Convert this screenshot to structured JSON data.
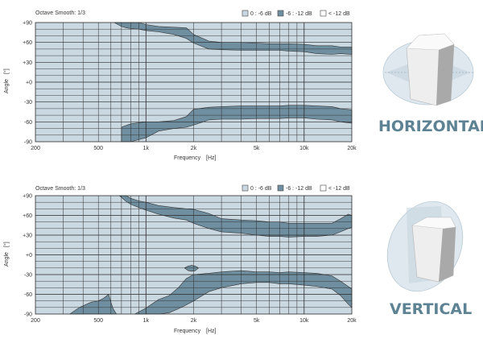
{
  "colors": {
    "light": "#cad8e2",
    "dark": "#6f8fa0",
    "white": "#ffffff",
    "grid": "#2b2b2b",
    "brand": "#5d8293"
  },
  "labels": {
    "horizontal": "HORIZONTAL",
    "vertical": "VERTICAL"
  },
  "chart_data": [
    {
      "type": "area",
      "id": "horizontal",
      "smoothing_label": "Octave Smooth: 1/3",
      "legend": [
        "0 : -6 dB",
        "-6 : -12 dB",
        "< -12 dB"
      ],
      "legend_placement": "top-right",
      "xlabel": "Frequency",
      "xunit": "[Hz]",
      "ylabel": "Angle",
      "yunit": "[°]",
      "xscale": "log",
      "xlim": [
        200,
        20000
      ],
      "ylim": [
        -90,
        90
      ],
      "xticks": [
        {
          "value": 200,
          "label": "200"
        },
        {
          "value": 500,
          "label": "500"
        },
        {
          "value": 1000,
          "label": "1k"
        },
        {
          "value": 2000,
          "label": "2k"
        },
        {
          "value": 5000,
          "label": "5k"
        },
        {
          "value": 10000,
          "label": "10k"
        },
        {
          "value": 20000,
          "label": "20k"
        }
      ],
      "yticks": [
        {
          "value": 90,
          "label": "+90"
        },
        {
          "value": 60,
          "label": "+60"
        },
        {
          "value": 30,
          "label": "+30"
        },
        {
          "value": 0,
          "label": "+0"
        },
        {
          "value": -30,
          "label": "-30"
        },
        {
          "value": -60,
          "label": "-60"
        },
        {
          "value": -90,
          "label": "-90"
        }
      ],
      "grid": true,
      "bands": [
        {
          "name": "-6 : -12 dB upper",
          "x": [
            630,
            700,
            750,
            800,
            900,
            1000,
            1200,
            1500,
            1800,
            2000,
            2500,
            3000,
            4000,
            5000,
            6000,
            7000,
            8000,
            10000,
            12000,
            15000,
            17000,
            20000
          ],
          "top": [
            90,
            90,
            90,
            90,
            90,
            87,
            84,
            83,
            82,
            72,
            62,
            60,
            60,
            59,
            58,
            58,
            58,
            57,
            55,
            55,
            53,
            53
          ],
          "bottom": [
            90,
            84,
            82,
            81,
            80,
            78,
            76,
            72,
            66,
            59,
            50,
            49,
            48,
            48,
            48,
            48,
            47,
            46,
            43,
            42,
            43,
            42
          ]
        },
        {
          "name": "-6 : -12 dB lower",
          "x": [
            700,
            800,
            1000,
            1200,
            1500,
            1800,
            2000,
            2500,
            3000,
            4000,
            5000,
            6000,
            7000,
            8000,
            10000,
            12000,
            15000,
            17000,
            20000
          ],
          "top": [
            -68,
            -63,
            -60,
            -60,
            -58,
            -52,
            -41,
            -38,
            -37,
            -36,
            -36,
            -36,
            -36,
            -35,
            -35,
            -36,
            -37,
            -40,
            -42
          ],
          "bottom": [
            -90,
            -90,
            -84,
            -74,
            -70,
            -68,
            -65,
            -57,
            -56,
            -56,
            -55,
            -55,
            -55,
            -54,
            -54,
            -56,
            -57,
            -60,
            -62
          ]
        }
      ],
      "below_12dB": []
    },
    {
      "type": "area",
      "id": "vertical",
      "smoothing_label": "Octave Smooth: 1/3",
      "legend": [
        "0 : -6 dB",
        "-6 : -12 dB",
        "< -12 dB"
      ],
      "legend_placement": "top-right",
      "xlabel": "Frequency",
      "xunit": "[Hz]",
      "ylabel": "Angle",
      "yunit": "[°]",
      "xscale": "log",
      "xlim": [
        200,
        20000
      ],
      "ylim": [
        -90,
        90
      ],
      "xticks": [
        {
          "value": 200,
          "label": "200"
        },
        {
          "value": 500,
          "label": "500"
        },
        {
          "value": 1000,
          "label": "1k"
        },
        {
          "value": 2000,
          "label": "2k"
        },
        {
          "value": 5000,
          "label": "5k"
        },
        {
          "value": 10000,
          "label": "10k"
        },
        {
          "value": 20000,
          "label": "20k"
        }
      ],
      "yticks": [
        {
          "value": 90,
          "label": "+90"
        },
        {
          "value": 60,
          "label": "+60"
        },
        {
          "value": 30,
          "label": "+30"
        },
        {
          "value": 0,
          "label": "+0"
        },
        {
          "value": -30,
          "label": "-30"
        },
        {
          "value": -60,
          "label": "-60"
        },
        {
          "value": -90,
          "label": "-90"
        }
      ],
      "grid": true,
      "bands": [
        {
          "name": "-6 : -12 dB upper",
          "x": [
            680,
            750,
            800,
            900,
            1000,
            1200,
            1500,
            1800,
            2000,
            2500,
            3000,
            4000,
            5000,
            6000,
            7000,
            8000,
            10000,
            12000,
            15000,
            17000,
            19000,
            20000
          ],
          "top": [
            90,
            90,
            86,
            82,
            80,
            75,
            72,
            70,
            69,
            63,
            55,
            53,
            52,
            50,
            50,
            48,
            48,
            48,
            48,
            55,
            62,
            60
          ],
          "bottom": [
            90,
            81,
            77,
            72,
            68,
            62,
            56,
            53,
            48,
            40,
            35,
            33,
            30,
            28,
            28,
            27,
            28,
            28,
            30,
            35,
            40,
            42
          ]
        },
        {
          "name": "-6 : -12 dB lower",
          "x": [
            850,
            1000,
            1200,
            1400,
            1600,
            1800,
            2000,
            2500,
            3000,
            4000,
            5000,
            6000,
            7000,
            8000,
            10000,
            12000,
            15000,
            17000,
            19000,
            20000
          ],
          "top": [
            -90,
            -81,
            -68,
            -62,
            -50,
            -36,
            -30,
            -28,
            -26,
            -24,
            -26,
            -26,
            -27,
            -26,
            -27,
            -28,
            -32,
            -40,
            -48,
            -52
          ],
          "bottom": [
            -90,
            -90,
            -90,
            -88,
            -82,
            -76,
            -70,
            -56,
            -50,
            -44,
            -42,
            -42,
            -44,
            -44,
            -46,
            -48,
            -52,
            -62,
            -75,
            -80
          ]
        },
        {
          "name": "-6 : -12 dB low-frequency",
          "x": [
            330,
            380,
            450,
            500,
            540,
            580,
            600,
            620,
            650
          ],
          "top": [
            -90,
            -80,
            -72,
            -70,
            -66,
            -60,
            -72,
            -82,
            -90
          ],
          "bottom": [
            -90,
            -90,
            -90,
            -90,
            -90,
            -90,
            -90,
            -90,
            -90
          ]
        },
        {
          "name": "-6 : -12 dB island",
          "x": [
            1750,
            1850,
            1950,
            2050,
            2150
          ],
          "top": [
            -20,
            -17,
            -16,
            -17,
            -20
          ],
          "bottom": [
            -20,
            -24,
            -25,
            -24,
            -20
          ]
        }
      ],
      "below_12dB": []
    }
  ]
}
